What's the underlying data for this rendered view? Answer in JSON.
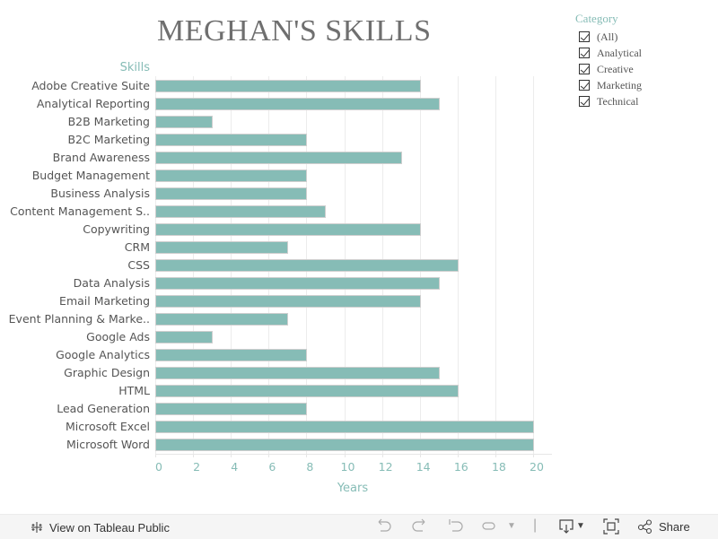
{
  "header": {
    "title": "MEGHAN'S SKILLS"
  },
  "legend": {
    "title": "Category",
    "items": [
      {
        "label": "(All)",
        "checked": true
      },
      {
        "label": "Analytical",
        "checked": true
      },
      {
        "label": "Creative",
        "checked": true
      },
      {
        "label": "Marketing",
        "checked": true
      },
      {
        "label": "Technical",
        "checked": true
      }
    ]
  },
  "chart_data": {
    "type": "bar",
    "orientation": "horizontal",
    "title": "MEGHAN'S SKILLS",
    "xlabel": "Years",
    "ylabel": "Skills",
    "xlim": [
      0,
      21
    ],
    "xticks": [
      0,
      2,
      4,
      6,
      8,
      10,
      12,
      14,
      16,
      18,
      20
    ],
    "grid": true,
    "legend_position": "top-right",
    "bar_color": "#86bcb6",
    "categories": [
      "Adobe Creative Suite",
      "Analytical Reporting",
      "B2B Marketing",
      "B2C Marketing",
      "Brand Awareness",
      "Budget Management",
      "Business Analysis",
      "Content Management S..",
      "Copywriting",
      "CRM",
      "CSS",
      "Data Analysis",
      "Email Marketing",
      "Event Planning & Marke..",
      "Google Ads",
      "Google Analytics",
      "Graphic Design",
      "HTML",
      "Lead Generation",
      "Microsoft Excel",
      "Microsoft Word"
    ],
    "values": [
      14,
      15,
      3,
      8,
      13,
      8,
      8,
      9,
      14,
      7,
      16,
      15,
      14,
      7,
      3,
      8,
      15,
      16,
      8,
      20,
      20
    ]
  },
  "footer": {
    "view_label": "View on Tableau Public",
    "share_label": "Share"
  },
  "colors": {
    "accent": "#86bcb6",
    "title": "#6f6f6f",
    "label": "#555555"
  }
}
